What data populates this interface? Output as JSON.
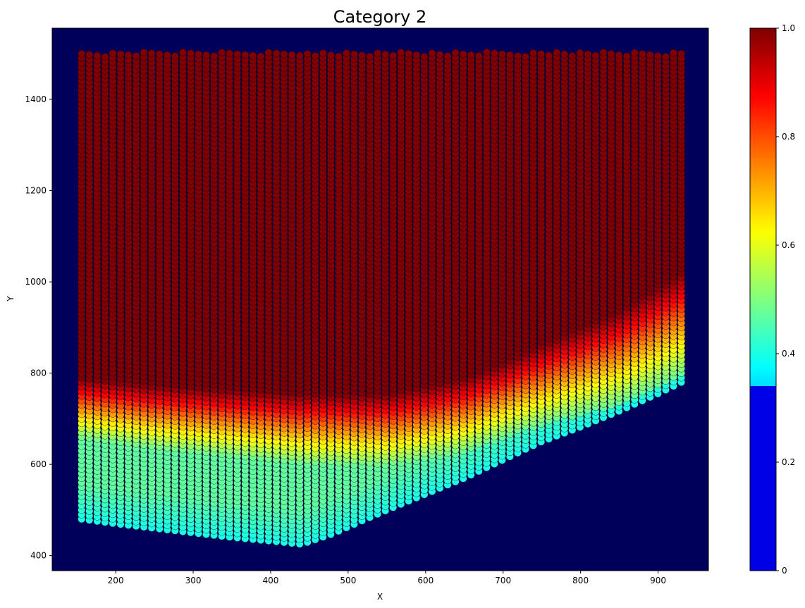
{
  "chart_data": {
    "type": "scatter",
    "title": "Category 2",
    "xlabel": "X",
    "ylabel": "Y",
    "xlim": [
      118,
      965
    ],
    "ylim": [
      367,
      1556
    ],
    "x_ticks": [
      200,
      300,
      400,
      500,
      600,
      700,
      800,
      900
    ],
    "y_ticks": [
      400,
      600,
      800,
      1000,
      1200,
      1400
    ],
    "background_color": "#00005a",
    "colormap": "jet",
    "colorbar": {
      "ticks": [
        "0",
        "0.2",
        "0.4",
        "0.6",
        "0.8",
        "1.0"
      ],
      "tick_values": [
        0,
        0.2,
        0.4,
        0.6,
        0.8,
        1.0
      ],
      "low_flat_until": 0.34
    },
    "grid": false,
    "points": {
      "x_start": 156,
      "x_end": 930,
      "columns": 78,
      "y_top": 1503,
      "y_step": 10,
      "bottom_boundary": [
        [
          156,
          480
        ],
        [
          200,
          470
        ],
        [
          250,
          460
        ],
        [
          300,
          450
        ],
        [
          350,
          440
        ],
        [
          400,
          432
        ],
        [
          440,
          425
        ],
        [
          480,
          448
        ],
        [
          520,
          478
        ],
        [
          560,
          507
        ],
        [
          600,
          535
        ],
        [
          650,
          570
        ],
        [
          700,
          610
        ],
        [
          750,
          650
        ],
        [
          800,
          682
        ],
        [
          850,
          717
        ],
        [
          900,
          755
        ],
        [
          930,
          780
        ]
      ],
      "transition_center": [
        [
          156,
          700
        ],
        [
          250,
          680
        ],
        [
          350,
          665
        ],
        [
          450,
          650
        ],
        [
          550,
          648
        ],
        [
          650,
          680
        ],
        [
          750,
          745
        ],
        [
          850,
          800
        ],
        [
          930,
          870
        ]
      ],
      "transition_width": [
        [
          156,
          90
        ],
        [
          450,
          105
        ],
        [
          700,
          110
        ],
        [
          930,
          150
        ]
      ],
      "low_value": 0.47,
      "low_value_near_bottom": 0.4
    }
  }
}
